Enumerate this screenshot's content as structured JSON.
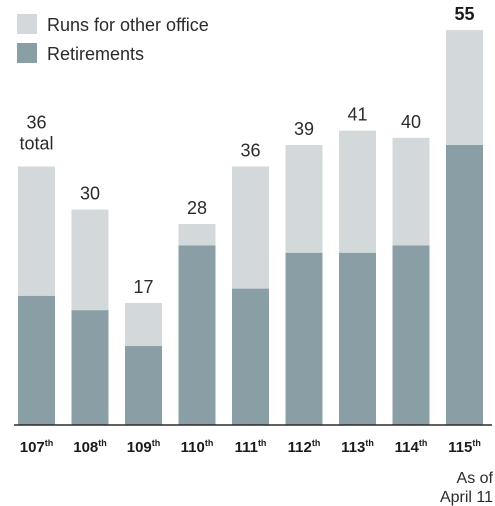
{
  "chart_data": {
    "type": "bar",
    "stacked": true,
    "categories": [
      "107",
      "108",
      "109",
      "110",
      "111",
      "112",
      "113",
      "114",
      "115"
    ],
    "category_suffix": "th",
    "series": [
      {
        "name": "Retirements",
        "values": [
          18,
          16,
          11,
          25,
          19,
          24,
          24,
          25,
          39
        ]
      },
      {
        "name": "Runs for other office",
        "values": [
          18,
          14,
          6,
          3,
          17,
          15,
          17,
          15,
          16
        ]
      }
    ],
    "totals": [
      36,
      30,
      17,
      28,
      36,
      39,
      41,
      40,
      55
    ],
    "first_total_suffix": "total",
    "last_note_lines": [
      "As of",
      "April 11"
    ],
    "legend_position": "top-left",
    "colors": {
      "Retirements": "#8a9fa5",
      "Runs for other office": "#d3d8da",
      "axis": "#2b2b2b"
    }
  }
}
